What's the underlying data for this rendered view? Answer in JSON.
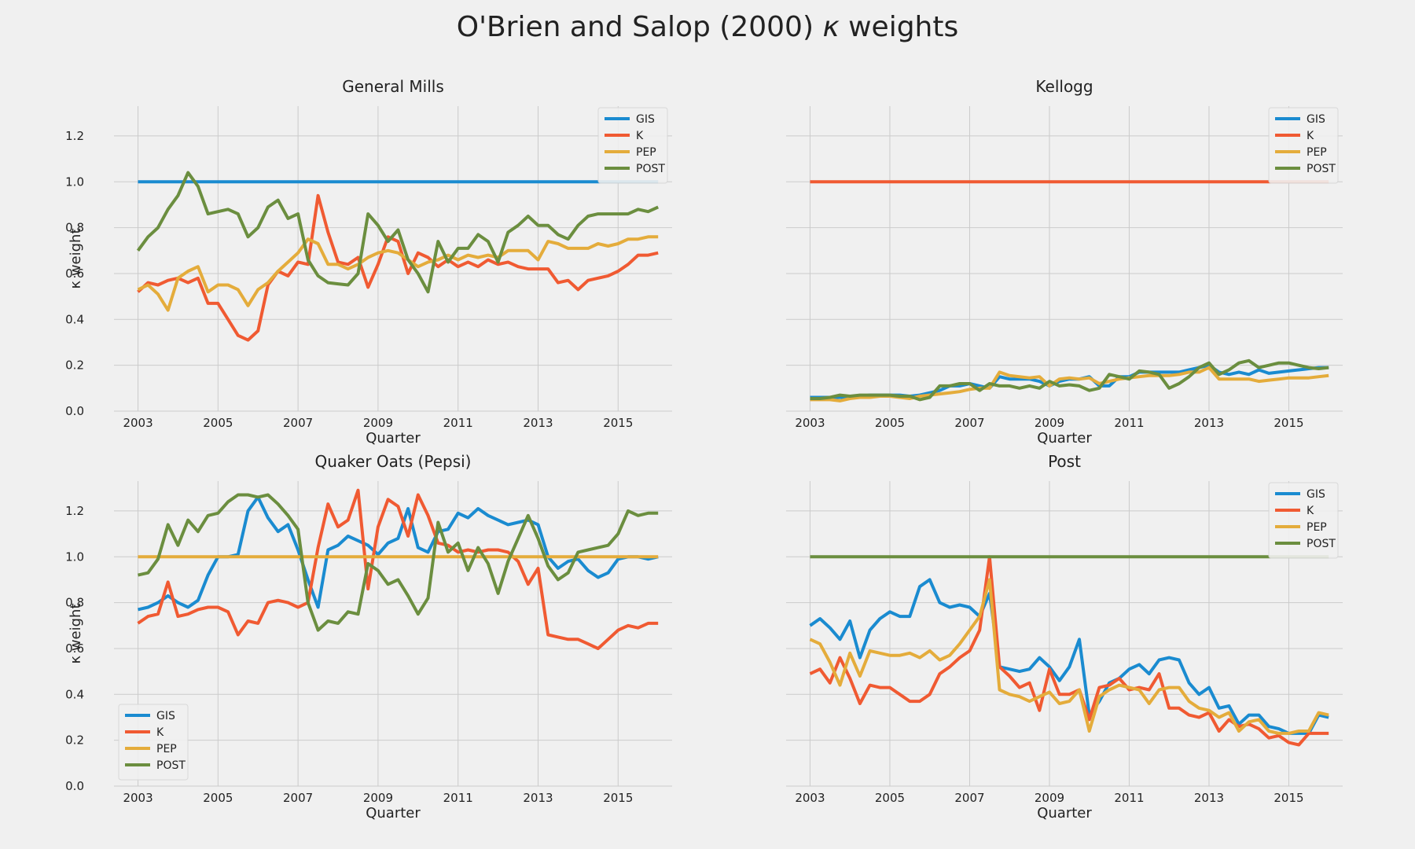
{
  "figure": {
    "title_prefix": "O'Brien and Salop (2000) ",
    "title_kappa": "κ",
    "title_suffix": " weights"
  },
  "colors": {
    "GIS": "#1a8bd0",
    "K": "#f05a32",
    "PEP": "#e4ac3b",
    "POST": "#6b8e3f"
  },
  "chart_data": [
    {
      "type": "line",
      "title": "General Mills",
      "xlabel": "Quarter",
      "ylabel": "κ weight",
      "xlim": [
        2002.4,
        2016.35
      ],
      "ylim": [
        0,
        1.33
      ],
      "xticks": [
        2003,
        2005,
        2007,
        2009,
        2011,
        2013,
        2015
      ],
      "yticks": [
        0.0,
        0.2,
        0.4,
        0.6,
        0.8,
        1.0,
        1.2
      ],
      "grid": true,
      "legend_position": "top-right",
      "series": [
        {
          "name": "GIS",
          "values": [
            1,
            1,
            1,
            1,
            1,
            1,
            1,
            1,
            1,
            1,
            1,
            1,
            1,
            1,
            1,
            1,
            1,
            1,
            1,
            1,
            1,
            1,
            1,
            1,
            1,
            1,
            1,
            1,
            1,
            1,
            1,
            1,
            1,
            1,
            1,
            1,
            1,
            1,
            1,
            1,
            1,
            1,
            1,
            1,
            1,
            1,
            1,
            1,
            1,
            1,
            1,
            1,
            1
          ]
        },
        {
          "name": "K",
          "values": [
            0.52,
            0.56,
            0.55,
            0.57,
            0.58,
            0.56,
            0.58,
            0.47,
            0.47,
            0.4,
            0.33,
            0.31,
            0.35,
            0.55,
            0.61,
            0.59,
            0.65,
            0.64,
            0.94,
            0.78,
            0.65,
            0.64,
            0.67,
            0.54,
            0.64,
            0.76,
            0.74,
            0.6,
            0.69,
            0.67,
            0.63,
            0.66,
            0.63,
            0.65,
            0.63,
            0.66,
            0.64,
            0.65,
            0.63,
            0.62,
            0.62,
            0.62,
            0.56,
            0.57,
            0.53,
            0.57,
            0.58,
            0.59,
            0.61,
            0.64,
            0.68,
            0.68,
            0.69
          ]
        },
        {
          "name": "PEP",
          "values": [
            0.53,
            0.55,
            0.51,
            0.44,
            0.58,
            0.61,
            0.63,
            0.52,
            0.55,
            0.55,
            0.53,
            0.46,
            0.53,
            0.56,
            0.61,
            0.65,
            0.69,
            0.75,
            0.73,
            0.64,
            0.64,
            0.62,
            0.64,
            0.67,
            0.69,
            0.7,
            0.69,
            0.66,
            0.63,
            0.65,
            0.66,
            0.68,
            0.66,
            0.68,
            0.67,
            0.68,
            0.67,
            0.7,
            0.7,
            0.7,
            0.66,
            0.74,
            0.73,
            0.71,
            0.71,
            0.71,
            0.73,
            0.72,
            0.73,
            0.75,
            0.75,
            0.76,
            0.76
          ]
        },
        {
          "name": "POST",
          "values": [
            0.7,
            0.76,
            0.8,
            0.88,
            0.94,
            1.04,
            0.98,
            0.86,
            0.87,
            0.88,
            0.86,
            0.76,
            0.8,
            0.89,
            0.92,
            0.84,
            0.86,
            0.66,
            0.59,
            0.56,
            0.555,
            0.55,
            0.6,
            0.86,
            0.81,
            0.74,
            0.79,
            0.66,
            0.6,
            0.52,
            0.74,
            0.65,
            0.71,
            0.71,
            0.77,
            0.74,
            0.65,
            0.78,
            0.81,
            0.85,
            0.81,
            0.81,
            0.77,
            0.75,
            0.81,
            0.85,
            0.86,
            0.86,
            0.86,
            0.86,
            0.88,
            0.87,
            0.89
          ]
        }
      ]
    },
    {
      "type": "line",
      "title": "Kellogg",
      "xlabel": "Quarter",
      "ylabel": "",
      "xlim": [
        2002.4,
        2016.35
      ],
      "ylim": [
        0,
        1.33
      ],
      "xticks": [
        2003,
        2005,
        2007,
        2009,
        2011,
        2013,
        2015
      ],
      "yticks": [
        0.0,
        0.2,
        0.4,
        0.6,
        0.8,
        1.0,
        1.2
      ],
      "show_yticklabels": false,
      "grid": true,
      "legend_position": "top-right",
      "series": [
        {
          "name": "GIS",
          "values": [
            0.06,
            0.06,
            0.06,
            0.06,
            0.06,
            0.065,
            0.07,
            0.07,
            0.07,
            0.07,
            0.065,
            0.07,
            0.08,
            0.09,
            0.11,
            0.11,
            0.12,
            0.11,
            0.1,
            0.15,
            0.14,
            0.14,
            0.14,
            0.13,
            0.11,
            0.13,
            0.14,
            0.14,
            0.15,
            0.11,
            0.11,
            0.15,
            0.15,
            0.17,
            0.17,
            0.17,
            0.17,
            0.17,
            0.18,
            0.19,
            0.2,
            0.17,
            0.16,
            0.17,
            0.16,
            0.18,
            0.165,
            0.17,
            0.175,
            0.18,
            0.185,
            0.19,
            0.19
          ]
        },
        {
          "name": "K",
          "values": [
            1,
            1,
            1,
            1,
            1,
            1,
            1,
            1,
            1,
            1,
            1,
            1,
            1,
            1,
            1,
            1,
            1,
            1,
            1,
            1,
            1,
            1,
            1,
            1,
            1,
            1,
            1,
            1,
            1,
            1,
            1,
            1,
            1,
            1,
            1,
            1,
            1,
            1,
            1,
            1,
            1,
            1,
            1,
            1,
            1,
            1,
            1,
            1,
            1,
            1,
            1,
            1,
            1
          ]
        },
        {
          "name": "PEP",
          "values": [
            0.05,
            0.05,
            0.05,
            0.045,
            0.055,
            0.06,
            0.06,
            0.065,
            0.065,
            0.06,
            0.055,
            0.065,
            0.07,
            0.075,
            0.08,
            0.085,
            0.095,
            0.1,
            0.1,
            0.17,
            0.155,
            0.15,
            0.145,
            0.15,
            0.11,
            0.14,
            0.145,
            0.14,
            0.145,
            0.12,
            0.13,
            0.14,
            0.145,
            0.15,
            0.155,
            0.155,
            0.155,
            0.16,
            0.17,
            0.17,
            0.19,
            0.14,
            0.14,
            0.14,
            0.14,
            0.13,
            0.135,
            0.14,
            0.145,
            0.145,
            0.145,
            0.15,
            0.155
          ]
        },
        {
          "name": "POST",
          "values": [
            0.055,
            0.055,
            0.06,
            0.07,
            0.065,
            0.07,
            0.07,
            0.07,
            0.07,
            0.065,
            0.065,
            0.05,
            0.06,
            0.11,
            0.11,
            0.12,
            0.12,
            0.09,
            0.12,
            0.11,
            0.11,
            0.1,
            0.11,
            0.1,
            0.13,
            0.11,
            0.115,
            0.11,
            0.09,
            0.1,
            0.16,
            0.15,
            0.14,
            0.175,
            0.17,
            0.16,
            0.1,
            0.12,
            0.15,
            0.19,
            0.21,
            0.16,
            0.18,
            0.21,
            0.22,
            0.19,
            0.2,
            0.21,
            0.21,
            0.2,
            0.19,
            0.185,
            0.19
          ]
        }
      ]
    },
    {
      "type": "line",
      "title": "Quaker Oats (Pepsi)",
      "xlabel": "Quarter",
      "ylabel": "κ weight",
      "xlim": [
        2002.4,
        2016.35
      ],
      "ylim": [
        0,
        1.33
      ],
      "xticks": [
        2003,
        2005,
        2007,
        2009,
        2011,
        2013,
        2015
      ],
      "yticks": [
        0.0,
        0.2,
        0.4,
        0.6,
        0.8,
        1.0,
        1.2
      ],
      "grid": true,
      "legend_position": "bottom-left",
      "series": [
        {
          "name": "GIS",
          "values": [
            0.77,
            0.78,
            0.8,
            0.83,
            0.8,
            0.78,
            0.81,
            0.92,
            1.0,
            1.0,
            1.01,
            1.2,
            1.26,
            1.17,
            1.11,
            1.14,
            1.03,
            0.9,
            0.78,
            1.03,
            1.05,
            1.09,
            1.07,
            1.05,
            1.01,
            1.06,
            1.08,
            1.21,
            1.04,
            1.02,
            1.11,
            1.12,
            1.19,
            1.17,
            1.21,
            1.18,
            1.16,
            1.14,
            1.15,
            1.16,
            1.14,
            1.0,
            0.95,
            0.98,
            0.99,
            0.94,
            0.91,
            0.93,
            0.99,
            1.0,
            1.0,
            0.99,
            1.0
          ]
        },
        {
          "name": "K",
          "values": [
            0.71,
            0.74,
            0.75,
            0.89,
            0.74,
            0.75,
            0.77,
            0.78,
            0.78,
            0.76,
            0.66,
            0.72,
            0.71,
            0.8,
            0.81,
            0.8,
            0.78,
            0.8,
            1.04,
            1.23,
            1.13,
            1.16,
            1.29,
            0.86,
            1.13,
            1.25,
            1.22,
            1.09,
            1.27,
            1.18,
            1.06,
            1.05,
            1.02,
            1.03,
            1.02,
            1.03,
            1.03,
            1.02,
            0.98,
            0.88,
            0.95,
            0.66,
            0.65,
            0.64,
            0.64,
            0.62,
            0.6,
            0.64,
            0.68,
            0.7,
            0.69,
            0.71,
            0.71
          ]
        },
        {
          "name": "PEP",
          "values": [
            1,
            1,
            1,
            1,
            1,
            1,
            1,
            1,
            1,
            1,
            1,
            1,
            1,
            1,
            1,
            1,
            1,
            1,
            1,
            1,
            1,
            1,
            1,
            1,
            1,
            1,
            1,
            1,
            1,
            1,
            1,
            1,
            1,
            1,
            1,
            1,
            1,
            1,
            1,
            1,
            1,
            1,
            1,
            1,
            1,
            1,
            1,
            1,
            1,
            1,
            1,
            1,
            1
          ]
        },
        {
          "name": "POST",
          "values": [
            0.92,
            0.93,
            0.99,
            1.14,
            1.05,
            1.16,
            1.11,
            1.18,
            1.19,
            1.24,
            1.27,
            1.27,
            1.26,
            1.27,
            1.23,
            1.18,
            1.12,
            0.8,
            0.68,
            0.72,
            0.71,
            0.76,
            0.75,
            0.97,
            0.94,
            0.88,
            0.9,
            0.83,
            0.75,
            0.82,
            1.15,
            1.02,
            1.06,
            0.94,
            1.04,
            0.97,
            0.84,
            0.98,
            1.08,
            1.18,
            1.08,
            0.96,
            0.9,
            0.93,
            1.02,
            1.03,
            1.04,
            1.05,
            1.1,
            1.2,
            1.18,
            1.19,
            1.19
          ]
        }
      ]
    },
    {
      "type": "line",
      "title": "Post",
      "xlabel": "Quarter",
      "ylabel": "",
      "xlim": [
        2002.4,
        2016.35
      ],
      "ylim": [
        0,
        1.33
      ],
      "xticks": [
        2003,
        2005,
        2007,
        2009,
        2011,
        2013,
        2015
      ],
      "yticks": [
        0.0,
        0.2,
        0.4,
        0.6,
        0.8,
        1.0,
        1.2
      ],
      "show_yticklabels": false,
      "grid": true,
      "legend_position": "top-right",
      "series": [
        {
          "name": "GIS",
          "values": [
            0.7,
            0.73,
            0.69,
            0.64,
            0.72,
            0.56,
            0.68,
            0.73,
            0.76,
            0.74,
            0.74,
            0.87,
            0.9,
            0.8,
            0.78,
            0.79,
            0.78,
            0.74,
            0.84,
            0.52,
            0.51,
            0.5,
            0.51,
            0.56,
            0.52,
            0.46,
            0.52,
            0.64,
            0.31,
            0.37,
            0.45,
            0.47,
            0.51,
            0.53,
            0.49,
            0.55,
            0.56,
            0.55,
            0.45,
            0.4,
            0.43,
            0.34,
            0.35,
            0.27,
            0.31,
            0.31,
            0.26,
            0.25,
            0.23,
            0.23,
            0.23,
            0.31,
            0.3
          ]
        },
        {
          "name": "K",
          "values": [
            0.49,
            0.51,
            0.45,
            0.56,
            0.47,
            0.36,
            0.44,
            0.43,
            0.43,
            0.4,
            0.37,
            0.37,
            0.4,
            0.49,
            0.52,
            0.56,
            0.59,
            0.68,
            1.0,
            0.52,
            0.48,
            0.43,
            0.45,
            0.33,
            0.51,
            0.4,
            0.4,
            0.42,
            0.29,
            0.43,
            0.44,
            0.47,
            0.42,
            0.43,
            0.42,
            0.49,
            0.34,
            0.34,
            0.31,
            0.3,
            0.32,
            0.24,
            0.29,
            0.26,
            0.27,
            0.25,
            0.21,
            0.22,
            0.19,
            0.18,
            0.23,
            0.23,
            0.23
          ]
        },
        {
          "name": "PEP",
          "values": [
            0.64,
            0.62,
            0.54,
            0.44,
            0.58,
            0.48,
            0.59,
            0.58,
            0.57,
            0.57,
            0.58,
            0.56,
            0.59,
            0.55,
            0.57,
            0.62,
            0.68,
            0.74,
            0.9,
            0.42,
            0.4,
            0.39,
            0.37,
            0.39,
            0.41,
            0.36,
            0.37,
            0.42,
            0.24,
            0.39,
            0.42,
            0.44,
            0.43,
            0.42,
            0.36,
            0.42,
            0.43,
            0.43,
            0.37,
            0.34,
            0.33,
            0.3,
            0.32,
            0.24,
            0.28,
            0.29,
            0.24,
            0.23,
            0.23,
            0.24,
            0.24,
            0.32,
            0.31
          ]
        },
        {
          "name": "POST",
          "values": [
            1,
            1,
            1,
            1,
            1,
            1,
            1,
            1,
            1,
            1,
            1,
            1,
            1,
            1,
            1,
            1,
            1,
            1,
            1,
            1,
            1,
            1,
            1,
            1,
            1,
            1,
            1,
            1,
            1,
            1,
            1,
            1,
            1,
            1,
            1,
            1,
            1,
            1,
            1,
            1,
            1,
            1,
            1,
            1,
            1,
            1,
            1,
            1,
            1,
            1,
            1,
            1,
            1
          ]
        }
      ]
    }
  ]
}
